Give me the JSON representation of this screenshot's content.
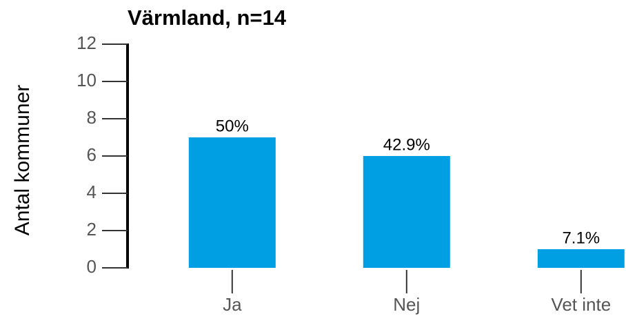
{
  "chart_data": {
    "type": "bar",
    "title": "Värmland, n=14",
    "y_label": "Antal kommuner",
    "categories": [
      "Ja",
      "Nej",
      "Vet inte"
    ],
    "values": [
      7,
      6,
      1
    ],
    "value_labels": [
      "50%",
      "42.9%",
      "7.1%"
    ],
    "color": "#009fe3",
    "ylim": [
      0,
      12
    ],
    "yticks": [
      0,
      2,
      4,
      6,
      8,
      10,
      12
    ],
    "grid": false
  }
}
